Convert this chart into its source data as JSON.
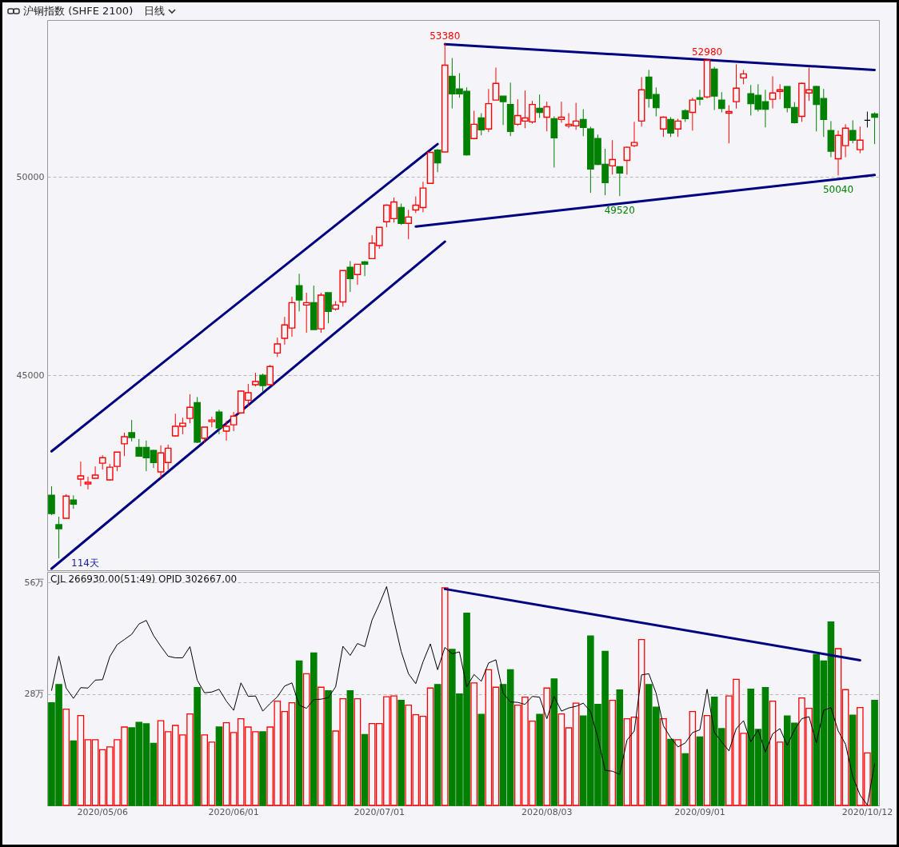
{
  "chart_data": [
    {
      "type": "candlestick",
      "title": "沪铜指数 (SHFE 2100)",
      "subtitle": "日线",
      "categories": [
        null,
        null,
        null,
        null,
        null,
        null,
        null,
        "2020/05/06",
        null,
        null,
        null,
        null,
        null,
        null,
        null,
        null,
        null,
        null,
        null,
        null,
        null,
        null,
        null,
        null,
        null,
        "2020/06/01",
        null,
        null,
        null,
        null,
        null,
        null,
        null,
        null,
        null,
        null,
        null,
        null,
        null,
        null,
        null,
        null,
        null,
        null,
        null,
        "2020/07/01",
        null,
        null,
        null,
        null,
        null,
        null,
        null,
        null,
        null,
        null,
        null,
        null,
        null,
        null,
        null,
        null,
        null,
        null,
        null,
        null,
        null,
        null,
        "2020/08/03",
        null,
        null,
        null,
        null,
        null,
        null,
        null,
        null,
        null,
        null,
        null,
        null,
        null,
        null,
        null,
        null,
        null,
        null,
        null,
        null,
        "2020/09/01",
        null,
        null,
        null,
        null,
        null,
        null,
        null,
        null,
        null,
        null,
        null,
        null,
        null,
        null,
        null,
        null,
        null,
        null,
        null,
        null,
        null,
        null,
        "2020/10/12",
        null
      ],
      "ohlc": [
        [
          41970,
          42200,
          41470,
          41510
        ],
        [
          41230,
          41430,
          40380,
          41130
        ],
        [
          41390,
          42000,
          41390,
          41950
        ],
        [
          41850,
          41970,
          41630,
          41750
        ],
        [
          42380,
          42820,
          42200,
          42460
        ],
        [
          42260,
          42440,
          42120,
          42300
        ],
        [
          42400,
          42700,
          42400,
          42480
        ],
        [
          42780,
          42980,
          42620,
          42920
        ],
        [
          42360,
          42760,
          42340,
          42680
        ],
        [
          42700,
          43060,
          42580,
          43060
        ],
        [
          43270,
          43550,
          42960,
          43450
        ],
        [
          43550,
          43870,
          43330,
          43430
        ],
        [
          43180,
          43390,
          42960,
          42960
        ],
        [
          43180,
          43350,
          42580,
          42920
        ],
        [
          43100,
          43120,
          42660,
          42800
        ],
        [
          42560,
          43230,
          42400,
          43040
        ],
        [
          42800,
          43250,
          42620,
          43160
        ],
        [
          43470,
          44030,
          43450,
          43710
        ],
        [
          43710,
          43930,
          43510,
          43790
        ],
        [
          43910,
          44520,
          43790,
          44190
        ],
        [
          44310,
          44450,
          43290,
          43310
        ],
        [
          43410,
          43690,
          43290,
          43690
        ],
        [
          43830,
          43950,
          43690,
          43870
        ],
        [
          44070,
          44130,
          43510,
          43670
        ],
        [
          43590,
          43850,
          43350,
          43710
        ],
        [
          43750,
          44070,
          43590,
          43970
        ],
        [
          44050,
          44620,
          44030,
          44600
        ],
        [
          44370,
          44780,
          44210,
          44560
        ],
        [
          44760,
          45060,
          44720,
          44840
        ],
        [
          45000,
          45040,
          44580,
          44740
        ],
        [
          44760,
          45260,
          44760,
          45220
        ],
        [
          45560,
          45950,
          45460,
          45790
        ],
        [
          45930,
          46470,
          45770,
          46270
        ],
        [
          46190,
          46980,
          45970,
          46830
        ],
        [
          47260,
          47560,
          46610,
          46900
        ],
        [
          46770,
          47080,
          46070,
          46830
        ],
        [
          46830,
          47260,
          46150,
          46150
        ],
        [
          46170,
          47080,
          46070,
          47020
        ],
        [
          47080,
          47080,
          46310,
          46610
        ],
        [
          46670,
          46870,
          46630,
          46770
        ],
        [
          46850,
          47640,
          46730,
          47640
        ],
        [
          47720,
          47880,
          47100,
          47440
        ],
        [
          47540,
          47800,
          47280,
          47800
        ],
        [
          47860,
          47880,
          47500,
          47800
        ],
        [
          47940,
          48530,
          47940,
          48330
        ],
        [
          48270,
          48730,
          48190,
          48730
        ],
        [
          48870,
          49310,
          48730,
          49290
        ],
        [
          48950,
          49480,
          48850,
          49370
        ],
        [
          49230,
          49330,
          48790,
          48830
        ],
        [
          48830,
          49170,
          48430,
          48990
        ],
        [
          49170,
          49510,
          49090,
          49290
        ],
        [
          49230,
          49880,
          49110,
          49720
        ],
        [
          49840,
          50620,
          49840,
          50620
        ],
        [
          50680,
          50710,
          50120,
          50360
        ],
        [
          50630,
          53380,
          50630,
          52820
        ],
        [
          52540,
          53000,
          51730,
          52100
        ],
        [
          52220,
          52620,
          52000,
          52100
        ],
        [
          52160,
          52260,
          50540,
          50560
        ],
        [
          50970,
          51670,
          50950,
          51330
        ],
        [
          51490,
          51610,
          51050,
          51190
        ],
        [
          51210,
          52220,
          51130,
          51850
        ],
        [
          51940,
          52760,
          51940,
          52360
        ],
        [
          52040,
          52040,
          51310,
          51900
        ],
        [
          51830,
          52380,
          51030,
          51150
        ],
        [
          51330,
          51960,
          51290,
          51550
        ],
        [
          51410,
          52180,
          51230,
          51490
        ],
        [
          51390,
          51920,
          51350,
          51830
        ],
        [
          51730,
          52080,
          51490,
          51630
        ],
        [
          51510,
          51900,
          51150,
          51770
        ],
        [
          51470,
          51530,
          50240,
          50990
        ],
        [
          51450,
          51900,
          51370,
          51510
        ],
        [
          51290,
          51610,
          51230,
          51330
        ],
        [
          51290,
          51870,
          51190,
          51410
        ],
        [
          51450,
          51710,
          51030,
          51250
        ],
        [
          51210,
          51270,
          49600,
          50200
        ],
        [
          50970,
          51070,
          50300,
          50320
        ],
        [
          50320,
          50710,
          49540,
          49860
        ],
        [
          50280,
          50930,
          50060,
          50440
        ],
        [
          50260,
          50260,
          49520,
          50100
        ],
        [
          50420,
          50770,
          50060,
          50750
        ],
        [
          50790,
          51390,
          50750,
          50870
        ],
        [
          51410,
          52520,
          51270,
          52200
        ],
        [
          52520,
          52700,
          51750,
          51980
        ],
        [
          52080,
          52260,
          51530,
          51750
        ],
        [
          51210,
          51530,
          51010,
          51510
        ],
        [
          51450,
          51510,
          51010,
          51110
        ],
        [
          51210,
          51470,
          51010,
          51410
        ],
        [
          51670,
          51710,
          51390,
          51470
        ],
        [
          51630,
          52000,
          51170,
          51940
        ],
        [
          52000,
          52200,
          51810,
          51960
        ],
        [
          52020,
          52980,
          51980,
          52940
        ],
        [
          52720,
          52780,
          51690,
          52040
        ],
        [
          51940,
          52140,
          51630,
          51730
        ],
        [
          51610,
          51810,
          50850,
          51650
        ],
        [
          51900,
          52840,
          51730,
          52240
        ],
        [
          52500,
          52700,
          52340,
          52600
        ],
        [
          52100,
          52320,
          51550,
          51850
        ],
        [
          52060,
          52340,
          51650,
          51710
        ],
        [
          51900,
          52200,
          51250,
          51710
        ],
        [
          51960,
          52540,
          51730,
          52120
        ],
        [
          52160,
          52340,
          51960,
          52200
        ],
        [
          52280,
          52280,
          51630,
          51750
        ],
        [
          51750,
          51890,
          51350,
          51370
        ],
        [
          51530,
          52380,
          51390,
          52360
        ],
        [
          52120,
          52760,
          51920,
          52200
        ],
        [
          52280,
          52300,
          51150,
          51830
        ],
        [
          51980,
          52220,
          51010,
          51450
        ],
        [
          51170,
          51410,
          50500,
          50650
        ],
        [
          50460,
          51170,
          50040,
          51050
        ],
        [
          50790,
          51330,
          50500,
          51230
        ],
        [
          51170,
          51430,
          50850,
          50930
        ],
        [
          50690,
          51270,
          50600,
          50930
        ],
        [
          51430,
          51650,
          51250,
          51430
        ],
        [
          51590,
          51630,
          50830,
          51510
        ]
      ],
      "colors": [
        "#008000",
        "#008000",
        "#ff0000",
        "#008000",
        "#ff0000",
        "#ff0000",
        "#ff0000",
        "#ff0000",
        "#ff0000",
        "#ff0000",
        "#ff0000",
        "#008000",
        "#008000",
        "#008000",
        "#008000",
        "#ff0000",
        "#ff0000",
        "#ff0000",
        "#ff0000",
        "#ff0000",
        "#008000",
        "#ff0000",
        "#ff0000",
        "#008000",
        "#ff0000",
        "#ff0000",
        "#ff0000",
        "#ff0000",
        "#ff0000",
        "#008000",
        "#ff0000",
        "#ff0000",
        "#ff0000",
        "#ff0000",
        "#008000",
        "#ff0000",
        "#008000",
        "#ff0000",
        "#008000",
        "#ff0000",
        "#ff0000",
        "#008000",
        "#ff0000",
        "#008000",
        "#ff0000",
        "#ff0000",
        "#ff0000",
        "#ff0000",
        "#008000",
        "#ff0000",
        "#ff0000",
        "#ff0000",
        "#ff0000",
        "#008000",
        "#ff0000",
        "#008000",
        "#008000",
        "#008000",
        "#ff0000",
        "#008000",
        "#ff0000",
        "#ff0000",
        "#008000",
        "#008000",
        "#ff0000",
        "#ff0000",
        "#ff0000",
        "#008000",
        "#ff0000",
        "#008000",
        "#ff0000",
        "#ff0000",
        "#ff0000",
        "#008000",
        "#008000",
        "#008000",
        "#008000",
        "#ff0000",
        "#008000",
        "#ff0000",
        "#ff0000",
        "#ff0000",
        "#008000",
        "#008000",
        "#ff0000",
        "#008000",
        "#ff0000",
        "#008000",
        "#ff0000",
        "#008000",
        "#ff0000",
        "#008000",
        "#008000",
        "#ff0000",
        "#ff0000",
        "#ff0000",
        "#008000",
        "#008000",
        "#008000",
        "#ff0000",
        "#ff0000",
        "#008000",
        "#008000",
        "#ff0000",
        "#ff0000",
        "#008000",
        "#008000",
        "#008000",
        "#ff0000",
        "#ff0000",
        "#008000",
        "#ff0000",
        "#000000",
        "#008000"
      ],
      "series": [
        {
          "type": "line",
          "color": "#000080",
          "values": [
            43080,
            null,
            null,
            null,
            null,
            null,
            null,
            null,
            null,
            null,
            null,
            null,
            null,
            null,
            null,
            null,
            null,
            null,
            null,
            null,
            null,
            null,
            null,
            null,
            null,
            null,
            null,
            null,
            null,
            null,
            null,
            null,
            null,
            null,
            null,
            null,
            null,
            null,
            null,
            null,
            null,
            null,
            null,
            null,
            null,
            null,
            null,
            null,
            null,
            null,
            null,
            null,
            null,
            50830,
            null,
            null,
            null,
            null,
            null,
            null,
            null,
            null,
            null,
            null,
            null,
            null,
            null,
            null,
            null,
            null,
            null,
            null,
            null,
            null,
            null,
            null,
            null,
            null,
            null,
            null,
            null,
            null,
            null,
            null,
            null,
            null,
            null,
            null,
            null,
            null,
            null,
            null,
            null,
            null,
            null,
            null,
            null,
            null,
            null,
            null,
            null,
            null,
            null,
            null,
            null,
            null,
            null,
            null,
            null,
            null,
            null,
            null,
            null,
            null
          ]
        },
        {
          "type": "line",
          "color": "#000080",
          "values": [
            40120,
            null,
            null,
            null,
            null,
            null,
            null,
            null,
            null,
            null,
            null,
            null,
            null,
            null,
            null,
            null,
            null,
            null,
            null,
            null,
            null,
            null,
            null,
            null,
            null,
            null,
            null,
            null,
            null,
            null,
            null,
            null,
            null,
            null,
            null,
            null,
            null,
            null,
            null,
            null,
            null,
            null,
            null,
            null,
            null,
            null,
            null,
            null,
            null,
            null,
            null,
            null,
            null,
            null,
            48370,
            null,
            null,
            null,
            null,
            null,
            null,
            null,
            null,
            null,
            null,
            null,
            null,
            null,
            null,
            null,
            null,
            null,
            null,
            null,
            null,
            null,
            null,
            null,
            null,
            null,
            null,
            null,
            null,
            null,
            null,
            null,
            null,
            null,
            null,
            null,
            null,
            null,
            null,
            null,
            null,
            null,
            null,
            null,
            null,
            null,
            null,
            null,
            null,
            null,
            null,
            null,
            null,
            null,
            null,
            null,
            null,
            null,
            null,
            null
          ]
        },
        {
          "type": "line",
          "color": "#000080",
          "values": [
            null,
            null,
            null,
            null,
            null,
            null,
            null,
            null,
            null,
            null,
            null,
            null,
            null,
            null,
            null,
            null,
            null,
            null,
            null,
            null,
            null,
            null,
            null,
            null,
            null,
            null,
            null,
            null,
            null,
            null,
            null,
            null,
            null,
            null,
            null,
            null,
            null,
            null,
            null,
            null,
            null,
            null,
            null,
            null,
            null,
            null,
            null,
            null,
            null,
            null,
            48750,
            null,
            null,
            null,
            null,
            null,
            null,
            null,
            null,
            null,
            null,
            null,
            null,
            null,
            null,
            null,
            null,
            null,
            null,
            null,
            null,
            null,
            null,
            null,
            null,
            null,
            null,
            null,
            null,
            null,
            null,
            null,
            null,
            null,
            null,
            null,
            null,
            null,
            null,
            null,
            null,
            null,
            null,
            null,
            null,
            null,
            null,
            null,
            null,
            null,
            null,
            null,
            null,
            null,
            null,
            null,
            null,
            null,
            null,
            null,
            null,
            null,
            null,
            50050
          ]
        },
        {
          "type": "line",
          "color": "#000080",
          "values": [
            null,
            null,
            null,
            null,
            null,
            null,
            null,
            null,
            null,
            null,
            null,
            null,
            null,
            null,
            null,
            null,
            null,
            null,
            null,
            null,
            null,
            null,
            null,
            null,
            null,
            null,
            null,
            null,
            null,
            null,
            null,
            null,
            null,
            null,
            null,
            null,
            null,
            null,
            null,
            null,
            null,
            null,
            null,
            null,
            null,
            null,
            null,
            null,
            null,
            null,
            null,
            null,
            null,
            null,
            53350,
            null,
            null,
            null,
            null,
            null,
            null,
            null,
            null,
            null,
            null,
            null,
            null,
            null,
            null,
            null,
            null,
            null,
            null,
            null,
            null,
            null,
            null,
            null,
            null,
            null,
            null,
            null,
            null,
            null,
            null,
            null,
            null,
            null,
            null,
            null,
            null,
            null,
            null,
            null,
            null,
            null,
            null,
            null,
            null,
            null,
            null,
            null,
            null,
            null,
            null,
            null,
            null,
            null,
            null,
            null,
            null,
            null,
            null,
            52700
          ]
        }
      ],
      "ylim": [
        40080,
        53960
      ],
      "yticks": [
        45000,
        50000
      ],
      "grid": "y",
      "tick_labels": "y",
      "annotations": [
        {
          "text": "53380",
          "y": 53380
        },
        {
          "text": "52980",
          "y": 52980
        },
        {
          "text": "49520",
          "y": 49520
        },
        {
          "text": "50040",
          "y": 50040
        },
        "114天"
      ]
    },
    {
      "type": "bar",
      "categories": [
        null,
        null,
        null,
        null,
        null,
        null,
        null,
        "2020/05/06",
        null,
        null,
        null,
        null,
        null,
        null,
        null,
        null,
        null,
        null,
        null,
        null,
        null,
        null,
        null,
        null,
        null,
        "2020/06/01",
        null,
        null,
        null,
        null,
        null,
        null,
        null,
        null,
        null,
        null,
        null,
        null,
        null,
        null,
        null,
        null,
        null,
        null,
        null,
        "2020/07/01",
        null,
        null,
        null,
        null,
        null,
        null,
        null,
        null,
        null,
        null,
        null,
        null,
        null,
        null,
        null,
        null,
        null,
        null,
        null,
        null,
        null,
        null,
        "2020/08/03",
        null,
        null,
        null,
        null,
        null,
        null,
        null,
        null,
        null,
        null,
        null,
        null,
        null,
        null,
        null,
        null,
        null,
        null,
        null,
        null,
        "2020/09/01",
        null,
        null,
        null,
        null,
        null,
        null,
        null,
        null,
        null,
        null,
        null,
        null,
        null,
        null,
        null,
        null,
        null,
        null,
        null,
        null,
        null,
        null,
        "2020/10/12",
        null
      ],
      "series": [
        {
          "type": "bar",
          "values": [
            25.8,
            30.4,
            24.2,
            16.2,
            22.6,
            16.5,
            16.5,
            14.0,
            14.7,
            16.5,
            19.7,
            19.5,
            20.9,
            20.5,
            15.6,
            21.3,
            18.5,
            20.1,
            17.7,
            23.0,
            29.6,
            17.7,
            15.9,
            19.7,
            20.8,
            18.3,
            21.8,
            19.7,
            18.5,
            18.5,
            19.7,
            26.2,
            23.6,
            25.8,
            36.3,
            33.1,
            38.3,
            29.7,
            28.8,
            18.7,
            26.8,
            28.8,
            26.8,
            17.8,
            20.6,
            20.6,
            27.3,
            27.5,
            26.4,
            25.2,
            22.8,
            22.4,
            29.5,
            30.4,
            54.7,
            39.2,
            28.0,
            48.3,
            30.8,
            22.9,
            34.1,
            29.7,
            30.4,
            34.1,
            25.2,
            27.2,
            21.2,
            22.9,
            29.5,
            31.8,
            23.0,
            19.5,
            25.7,
            22.5,
            42.6,
            25.4,
            38.7,
            26.4,
            29.0,
            21.8,
            22.2,
            41.7,
            30.4,
            24.7,
            21.8,
            16.6,
            16.5,
            13.0,
            23.6,
            17.2,
            22.6,
            27.2,
            19.3,
            27.5,
            31.7,
            18.1,
            29.2,
            19.1,
            29.6,
            26.2,
            15.9,
            22.5,
            20.7,
            27.0,
            24.4,
            37.9,
            36.3,
            46.1,
            39.4,
            29.1,
            22.7,
            24.6,
            13.2,
            26.4
          ],
          "colors": [
            "#008000",
            "#008000",
            "#ff0000",
            "#008000",
            "#ff0000",
            "#ff0000",
            "#ff0000",
            "#ff0000",
            "#ff0000",
            "#ff0000",
            "#ff0000",
            "#008000",
            "#008000",
            "#008000",
            "#008000",
            "#ff0000",
            "#ff0000",
            "#ff0000",
            "#ff0000",
            "#ff0000",
            "#008000",
            "#ff0000",
            "#ff0000",
            "#008000",
            "#ff0000",
            "#ff0000",
            "#ff0000",
            "#ff0000",
            "#ff0000",
            "#008000",
            "#ff0000",
            "#ff0000",
            "#ff0000",
            "#ff0000",
            "#008000",
            "#ff0000",
            "#008000",
            "#ff0000",
            "#008000",
            "#ff0000",
            "#ff0000",
            "#008000",
            "#ff0000",
            "#008000",
            "#ff0000",
            "#ff0000",
            "#ff0000",
            "#ff0000",
            "#008000",
            "#ff0000",
            "#ff0000",
            "#ff0000",
            "#ff0000",
            "#008000",
            "#ff0000",
            "#008000",
            "#008000",
            "#008000",
            "#ff0000",
            "#008000",
            "#ff0000",
            "#ff0000",
            "#008000",
            "#008000",
            "#ff0000",
            "#ff0000",
            "#ff0000",
            "#008000",
            "#ff0000",
            "#008000",
            "#ff0000",
            "#ff0000",
            "#ff0000",
            "#008000",
            "#008000",
            "#008000",
            "#008000",
            "#ff0000",
            "#008000",
            "#ff0000",
            "#ff0000",
            "#ff0000",
            "#008000",
            "#008000",
            "#ff0000",
            "#008000",
            "#ff0000",
            "#008000",
            "#ff0000",
            "#008000",
            "#ff0000",
            "#008000",
            "#008000",
            "#ff0000",
            "#ff0000",
            "#ff0000",
            "#008000",
            "#008000",
            "#008000",
            "#ff0000",
            "#ff0000",
            "#008000",
            "#008000",
            "#ff0000",
            "#ff0000",
            "#008000",
            "#008000",
            "#008000",
            "#ff0000",
            "#ff0000",
            "#008000",
            "#ff0000",
            "#ff0000",
            "#008000"
          ]
        },
        {
          "type": "line",
          "color": "#000000",
          "values": [
            28.9,
            37.5,
            29.5,
            26.9,
            29.6,
            29.5,
            31.5,
            31.6,
            37.4,
            40.4,
            41.7,
            43.0,
            45.6,
            46.5,
            42.7,
            40.0,
            37.5,
            37.1,
            37.1,
            39.9,
            31.5,
            28.3,
            28.5,
            29.2,
            26.2,
            23.9,
            30.8,
            27.4,
            27.5,
            23.7,
            25.6,
            27.3,
            30.0,
            30.8,
            25.2,
            24.4,
            26.6,
            26.7,
            27.1,
            29.8,
            40.0,
            37.7,
            40.7,
            39.9,
            46.6,
            50.6,
            55.0,
            46.6,
            38.7,
            33.1,
            30.6,
            36.1,
            40.6,
            34.1,
            39.7,
            38.1,
            38.6,
            29.8,
            32.9,
            31.2,
            35.8,
            36.6,
            28.2,
            26.0,
            25.9,
            25.4,
            27.4,
            27.2,
            21.8,
            27.4,
            23.7,
            24.5,
            24.9,
            25.7,
            23.6,
            17.0,
            8.8,
            8.6,
            7.8,
            16.4,
            18.7,
            32.8,
            33.1,
            28.2,
            20.0,
            17.0,
            14.7,
            15.7,
            18.3,
            19.0,
            29.2,
            18.3,
            16.0,
            13.7,
            19.3,
            21.3,
            16.0,
            19.0,
            13.4,
            18.0,
            19.3,
            15.1,
            19.0,
            21.8,
            22.3,
            15.7,
            23.9,
            24.6,
            18.7,
            15.4,
            7.2,
            2.6,
            0.1,
            10.5
          ]
        },
        {
          "type": "line",
          "color": "#000080",
          "values": [
            null,
            null,
            null,
            null,
            null,
            null,
            null,
            null,
            null,
            null,
            null,
            null,
            null,
            null,
            null,
            null,
            null,
            null,
            null,
            null,
            null,
            null,
            null,
            null,
            null,
            null,
            null,
            null,
            null,
            null,
            null,
            null,
            null,
            null,
            null,
            null,
            null,
            null,
            null,
            null,
            null,
            null,
            null,
            null,
            null,
            null,
            null,
            null,
            null,
            null,
            null,
            null,
            null,
            null,
            54.4,
            null,
            null,
            null,
            null,
            null,
            null,
            null,
            null,
            null,
            null,
            null,
            null,
            null,
            null,
            null,
            null,
            null,
            null,
            null,
            null,
            null,
            null,
            null,
            null,
            null,
            null,
            null,
            null,
            null,
            null,
            null,
            null,
            null,
            null,
            null,
            null,
            null,
            null,
            null,
            null,
            null,
            null,
            null,
            null,
            null,
            null,
            null,
            null,
            null,
            null,
            null,
            null,
            null,
            null,
            null,
            null,
            36.5,
            null,
            null
          ]
        }
      ],
      "ylim": [
        0,
        58.7
      ],
      "yticks": [
        {
          "value": 28,
          "label": "28万"
        },
        {
          "value": 56,
          "label": "56万"
        }
      ],
      "grid": "y",
      "annotations": [
        "CJL 266930.00(51:49)  OPID 302667.00"
      ]
    }
  ]
}
